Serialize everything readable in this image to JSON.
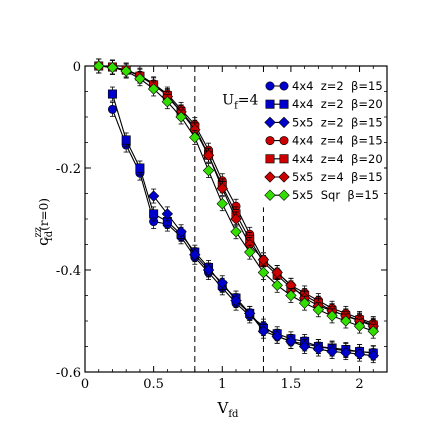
{
  "chart_data": {
    "type": "line",
    "xlabel_main": "V",
    "xlabel_sub": "fd",
    "ylabel_main": "c",
    "ylabel_sub": "fd",
    "ylabel_sup": "zz",
    "ylabel_arg": "(r=0)",
    "xlim": [
      0,
      2.2
    ],
    "ylim": [
      -0.6,
      0
    ],
    "xticks": [
      0,
      0.5,
      1,
      1.5,
      2
    ],
    "xtick_labels": [
      "0",
      "0.5",
      "1",
      "1.5",
      "2"
    ],
    "yticks": [
      0,
      -0.2,
      -0.4,
      -0.6
    ],
    "ytick_labels": [
      "0",
      "-0.2",
      "-0.4",
      "-0.6"
    ],
    "vlines": [
      0.8,
      1.3
    ],
    "annotation": {
      "main": "U",
      "sub": "f",
      "rest": "=4",
      "x": 1.0,
      "y": -0.075
    },
    "legend_position": "top-right",
    "series": [
      {
        "name": "4x4  z=2  β=15",
        "color": "#0000cc",
        "marker": "circle",
        "x": [
          0.2,
          0.3,
          0.4,
          0.5,
          0.6,
          0.7,
          0.8,
          0.9,
          1.0,
          1.1,
          1.2,
          1.3,
          1.4,
          1.5,
          1.6,
          1.7,
          1.8,
          1.9,
          2.0,
          2.1
        ],
        "y": [
          -0.085,
          -0.155,
          -0.21,
          -0.305,
          -0.31,
          -0.335,
          -0.375,
          -0.405,
          -0.435,
          -0.465,
          -0.49,
          -0.51,
          -0.53,
          -0.54,
          -0.545,
          -0.55,
          -0.555,
          -0.558,
          -0.56,
          -0.562
        ]
      },
      {
        "name": "4x4  z=2  β=20",
        "color": "#0000cc",
        "marker": "square",
        "x": [
          0.2,
          0.3,
          0.4,
          0.5,
          0.6,
          0.7,
          0.8,
          0.9,
          1.0,
          1.1,
          1.2,
          1.3,
          1.4,
          1.5,
          1.6,
          1.7,
          1.8,
          1.9,
          2.0,
          2.1
        ],
        "y": [
          -0.055,
          -0.145,
          -0.2,
          -0.29,
          -0.305,
          -0.33,
          -0.365,
          -0.395,
          -0.43,
          -0.455,
          -0.485,
          -0.515,
          -0.525,
          -0.535,
          -0.54,
          -0.55,
          -0.553,
          -0.556,
          -0.56,
          -0.563
        ]
      },
      {
        "name": "5x5  z=2  β=15",
        "color": "#0000cc",
        "marker": "diamond",
        "x": [
          0.5,
          0.6,
          0.7,
          0.8,
          0.9,
          1.0,
          1.1,
          1.2,
          1.3,
          1.4,
          1.5,
          1.6,
          1.7,
          1.8,
          1.9,
          2.0,
          2.1
        ],
        "y": [
          -0.255,
          -0.29,
          -0.325,
          -0.37,
          -0.4,
          -0.425,
          -0.46,
          -0.485,
          -0.52,
          -0.53,
          -0.54,
          -0.55,
          -0.555,
          -0.56,
          -0.562,
          -0.565,
          -0.568
        ]
      },
      {
        "name": "4x4  z=4  β=15",
        "color": "#cc0000",
        "marker": "circle",
        "x": [
          0.1,
          0.2,
          0.3,
          0.4,
          0.5,
          0.6,
          0.7,
          0.8,
          0.9,
          1.0,
          1.1,
          1.2,
          1.3,
          1.4,
          1.5,
          1.6,
          1.7,
          1.8,
          1.9,
          2.0,
          2.1
        ],
        "y": [
          0,
          -0.002,
          -0.008,
          -0.018,
          -0.035,
          -0.055,
          -0.085,
          -0.115,
          -0.165,
          -0.225,
          -0.275,
          -0.33,
          -0.38,
          -0.405,
          -0.43,
          -0.445,
          -0.46,
          -0.475,
          -0.485,
          -0.495,
          -0.505
        ]
      },
      {
        "name": "4x4  z=4  β=20",
        "color": "#cc0000",
        "marker": "square",
        "x": [
          0.1,
          0.2,
          0.3,
          0.4,
          0.5,
          0.6,
          0.7,
          0.8,
          0.9,
          1.0,
          1.1,
          1.2,
          1.3,
          1.4,
          1.5,
          1.6,
          1.7,
          1.8,
          1.9,
          2.0,
          2.1
        ],
        "y": [
          0,
          -0.002,
          -0.008,
          -0.02,
          -0.037,
          -0.058,
          -0.09,
          -0.12,
          -0.175,
          -0.235,
          -0.29,
          -0.34,
          -0.385,
          -0.41,
          -0.435,
          -0.45,
          -0.465,
          -0.48,
          -0.49,
          -0.498,
          -0.508
        ]
      },
      {
        "name": "5x5  z=4  β=15",
        "color": "#cc0000",
        "marker": "diamond",
        "x": [
          0.6,
          0.7,
          0.8,
          0.9,
          1.0,
          1.1,
          1.2,
          1.3,
          1.4,
          1.5,
          1.6,
          1.7,
          1.8,
          1.9,
          2.0,
          2.1
        ],
        "y": [
          -0.06,
          -0.09,
          -0.125,
          -0.175,
          -0.24,
          -0.3,
          -0.35,
          -0.38,
          -0.405,
          -0.43,
          -0.455,
          -0.47,
          -0.48,
          -0.49,
          -0.5,
          -0.51
        ]
      },
      {
        "name": "5x5  Sqr  β=15",
        "color": "#33dd00",
        "marker": "diamond",
        "x": [
          0.1,
          0.2,
          0.3,
          0.4,
          0.5,
          0.6,
          0.7,
          0.8,
          0.9,
          1.0,
          1.1,
          1.2,
          1.3,
          1.4,
          1.5,
          1.6,
          1.7,
          1.8,
          1.9,
          2.0,
          2.1
        ],
        "y": [
          0,
          -0.003,
          -0.01,
          -0.025,
          -0.045,
          -0.07,
          -0.1,
          -0.14,
          -0.205,
          -0.27,
          -0.325,
          -0.365,
          -0.405,
          -0.43,
          -0.45,
          -0.465,
          -0.478,
          -0.49,
          -0.5,
          -0.51,
          -0.52
        ]
      }
    ]
  }
}
